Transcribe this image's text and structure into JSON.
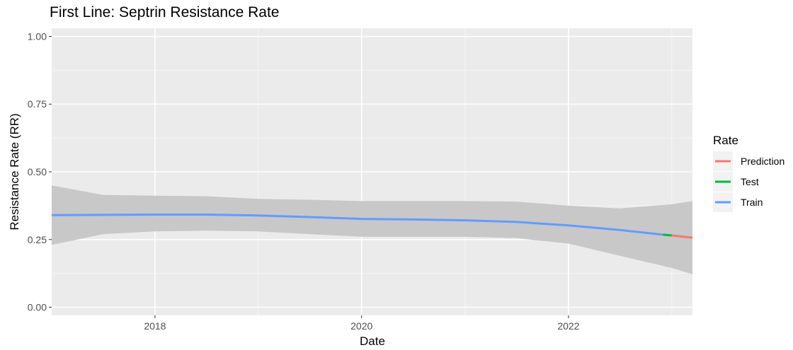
{
  "chart_data": {
    "type": "line",
    "title": "First Line: Septrin Resistance Rate",
    "xlabel": "Date",
    "ylabel": "Resistance Rate (RR)",
    "xlim": [
      "2017-01-01",
      "2023-03-15"
    ],
    "ylim": [
      -0.03,
      1.03
    ],
    "x_ticks": [
      {
        "label": "2018",
        "date": "2018-01-01"
      },
      {
        "label": "2020",
        "date": "2020-01-01"
      },
      {
        "label": "2022",
        "date": "2022-01-01"
      }
    ],
    "y_ticks": [
      {
        "label": "0.00",
        "value": 0.0
      },
      {
        "label": "0.25",
        "value": 0.25
      },
      {
        "label": "0.50",
        "value": 0.5
      },
      {
        "label": "0.75",
        "value": 0.75
      },
      {
        "label": "1.00",
        "value": 1.0
      }
    ],
    "grid": true,
    "legend": {
      "title": "Rate",
      "position": "right",
      "entries": [
        {
          "label": "Prediction",
          "color": "#F8766D"
        },
        {
          "label": "Test",
          "color": "#00BA38"
        },
        {
          "label": "Train",
          "color": "#619CFF"
        }
      ]
    },
    "confidence_band": {
      "color": "#c8c8c8",
      "x": [
        "2017-01-01",
        "2017-07-01",
        "2018-01-01",
        "2018-07-01",
        "2019-01-01",
        "2019-07-01",
        "2020-01-01",
        "2020-07-01",
        "2021-01-01",
        "2021-07-01",
        "2022-01-01",
        "2022-07-01",
        "2023-01-01",
        "2023-03-15"
      ],
      "lower": [
        0.23,
        0.27,
        0.28,
        0.283,
        0.28,
        0.27,
        0.26,
        0.26,
        0.26,
        0.255,
        0.235,
        0.19,
        0.145,
        0.122
      ],
      "upper": [
        0.45,
        0.415,
        0.412,
        0.41,
        0.4,
        0.397,
        0.392,
        0.392,
        0.392,
        0.39,
        0.375,
        0.365,
        0.38,
        0.392
      ]
    },
    "series": [
      {
        "name": "Train",
        "color": "#619CFF",
        "x": [
          "2017-01-01",
          "2017-07-01",
          "2018-01-01",
          "2018-07-01",
          "2019-01-01",
          "2019-07-01",
          "2020-01-01",
          "2020-07-01",
          "2021-01-01",
          "2021-07-01",
          "2022-01-01",
          "2022-07-01",
          "2022-12-01"
        ],
        "values": [
          0.34,
          0.341,
          0.342,
          0.342,
          0.339,
          0.333,
          0.326,
          0.324,
          0.321,
          0.315,
          0.302,
          0.285,
          0.268
        ]
      },
      {
        "name": "Test",
        "color": "#00BA38",
        "x": [
          "2022-12-01",
          "2023-01-01"
        ],
        "values": [
          0.268,
          0.265
        ]
      },
      {
        "name": "Prediction",
        "color": "#F8766D",
        "x": [
          "2023-01-01",
          "2023-03-15"
        ],
        "values": [
          0.265,
          0.257
        ]
      }
    ]
  }
}
